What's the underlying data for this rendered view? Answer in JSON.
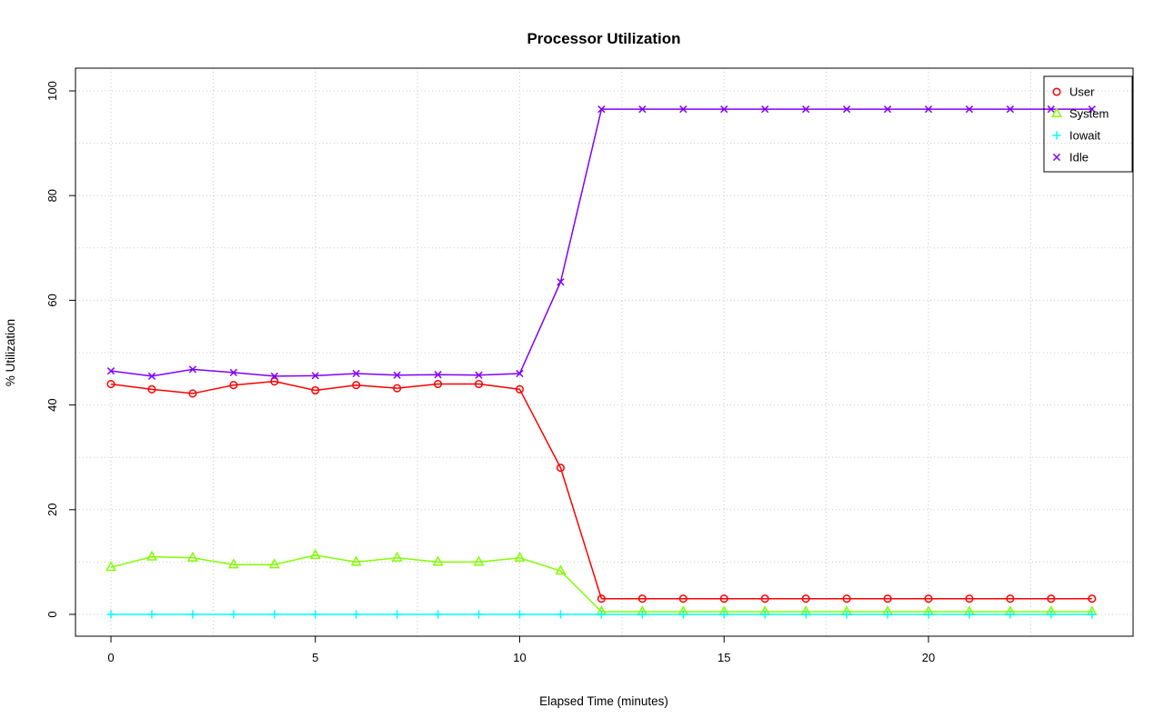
{
  "chart_data": {
    "type": "line",
    "title": "Processor Utilization",
    "xlabel": "Elapsed Time (minutes)",
    "ylabel": "% Utilization",
    "x": [
      0,
      1,
      2,
      3,
      4,
      5,
      6,
      7,
      8,
      9,
      10,
      11,
      12,
      13,
      14,
      15,
      16,
      17,
      18,
      19,
      20,
      21,
      22,
      23,
      24
    ],
    "xlim": [
      0,
      24
    ],
    "ylim": [
      0,
      100
    ],
    "x_ticks": [
      0,
      5,
      10,
      15,
      20
    ],
    "y_ticks": [
      0,
      20,
      40,
      60,
      80,
      100
    ],
    "grid": true,
    "legend_position": "top-right",
    "legend_entries": [
      "User",
      "System",
      "Iowait",
      "Idle"
    ],
    "series": [
      {
        "name": "User",
        "color": "#FF0000",
        "marker": "circle",
        "values": [
          44,
          43,
          42.2,
          43.8,
          44.5,
          42.8,
          43.8,
          43.2,
          44,
          44,
          43,
          28,
          3,
          3,
          3,
          3,
          3,
          3,
          3,
          3,
          3,
          3,
          3,
          3,
          3
        ]
      },
      {
        "name": "System",
        "color": "#80FF00",
        "marker": "triangle",
        "values": [
          9,
          11,
          10.8,
          9.5,
          9.5,
          11.3,
          10,
          10.8,
          10,
          10,
          10.8,
          8.3,
          0.5,
          0.5,
          0.5,
          0.5,
          0.5,
          0.5,
          0.5,
          0.5,
          0.5,
          0.5,
          0.5,
          0.5,
          0.5
        ]
      },
      {
        "name": "Iowait",
        "color": "#00FFFF",
        "marker": "plus",
        "values": [
          0,
          0,
          0,
          0,
          0,
          0,
          0,
          0,
          0,
          0,
          0,
          0,
          0,
          0,
          0,
          0,
          0,
          0,
          0,
          0,
          0,
          0,
          0,
          0,
          0
        ]
      },
      {
        "name": "Idle",
        "color": "#8000FF",
        "marker": "x",
        "values": [
          46.5,
          45.5,
          46.8,
          46.2,
          45.5,
          45.6,
          46,
          45.7,
          45.8,
          45.7,
          46,
          63.5,
          96.5,
          96.5,
          96.5,
          96.5,
          96.5,
          96.5,
          96.5,
          96.5,
          96.5,
          96.5,
          96.5,
          96.5,
          96.5
        ]
      }
    ]
  }
}
